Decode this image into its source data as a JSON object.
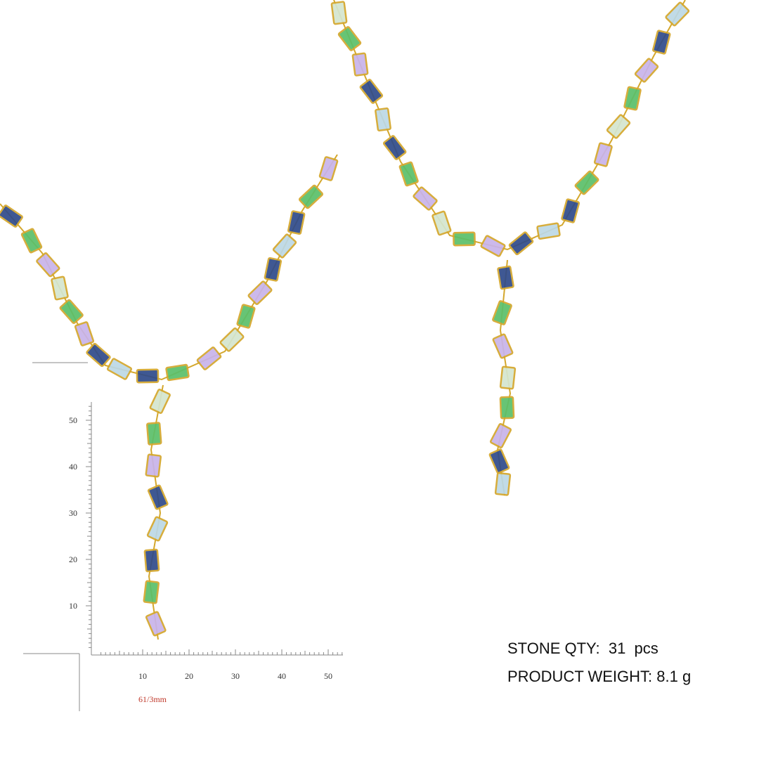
{
  "ruler": {
    "y_labels": [
      50,
      40,
      30,
      20,
      10
    ],
    "x_labels": [
      10,
      20,
      30,
      40,
      50
    ],
    "size_note": "61/3mm"
  },
  "specs": {
    "stone_qty": "STONE QTY:  31  pcs",
    "product_weight": "PRODUCT WEIGHT: 8.1 g"
  }
}
